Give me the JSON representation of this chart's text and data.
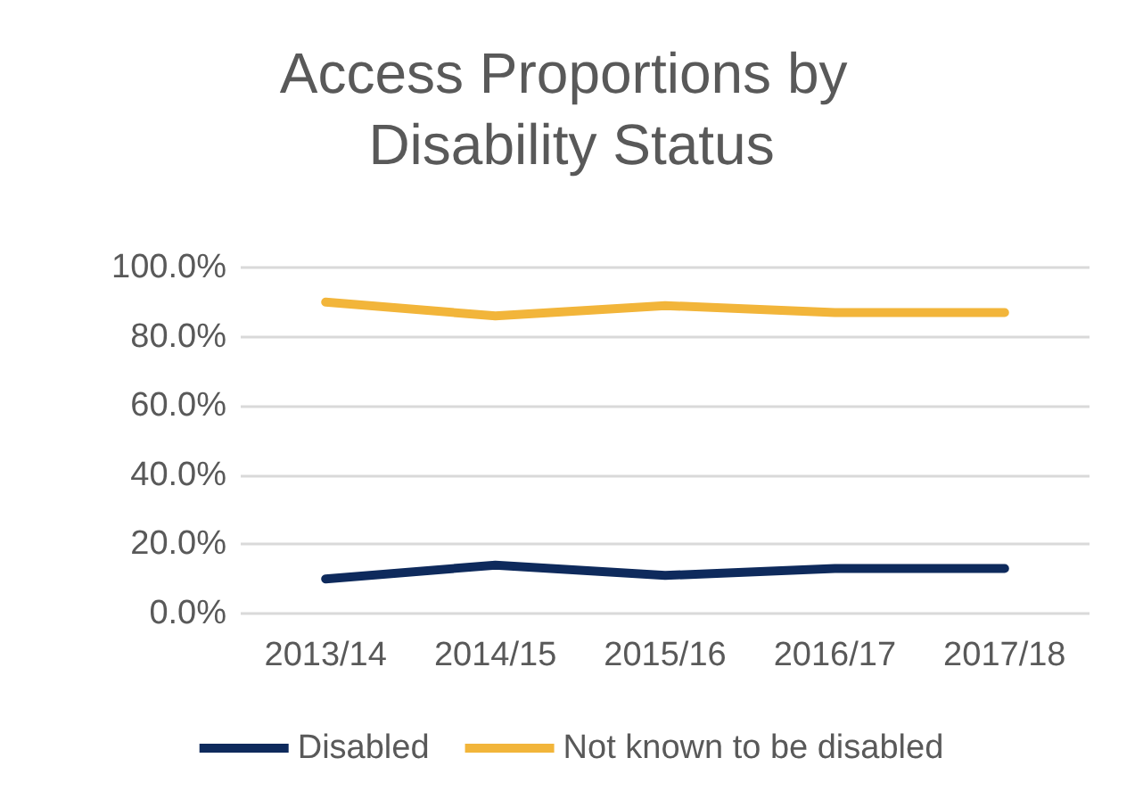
{
  "chart_data": {
    "type": "line",
    "title": "Access Proportions by Disability Status",
    "categories": [
      "2013/14",
      "2014/15",
      "2015/16",
      "2016/17",
      "2017/18"
    ],
    "series": [
      {
        "name": "Disabled",
        "color": "#0e2a5c",
        "values": [
          10,
          14,
          11,
          13,
          13
        ]
      },
      {
        "name": "Not known to be disabled",
        "color": "#f2b53a",
        "values": [
          90,
          86,
          89,
          87,
          87
        ]
      }
    ],
    "ylim": [
      0,
      100
    ],
    "yticks": [
      {
        "value": 0,
        "label": "0.0%"
      },
      {
        "value": 20,
        "label": "20.0%"
      },
      {
        "value": 40,
        "label": "40.0%"
      },
      {
        "value": 60,
        "label": "60.0%"
      },
      {
        "value": 80,
        "label": "80.0%"
      },
      {
        "value": 100,
        "label": "100.0%"
      }
    ],
    "grid": "y",
    "legend": "bottom",
    "marker": "none",
    "line_style": "solid"
  }
}
